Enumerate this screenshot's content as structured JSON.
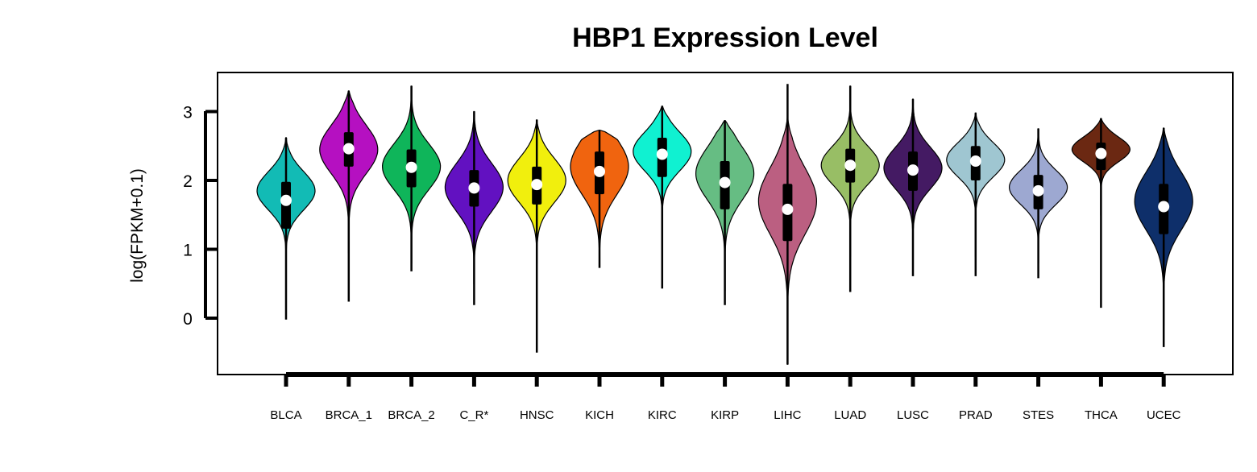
{
  "chart_data": {
    "type": "violin",
    "title": "HBP1 Expression Level",
    "xlabel": "",
    "ylabel": "log(FPKM+0.1)",
    "yticks": [
      0,
      1,
      2,
      3
    ],
    "ylim": [
      -0.8,
      3.58
    ],
    "categories": [
      "BLCA",
      "BRCA_1",
      "BRCA_2",
      "C_R*",
      "HNSC",
      "KICH",
      "KIRC",
      "KIRP",
      "LIHC",
      "LUAD",
      "LUSC",
      "PRAD",
      "STES",
      "THCA",
      "UCEC"
    ],
    "series": [
      {
        "category": "BLCA",
        "color": "#12BBB5",
        "min": -0.02,
        "q1": 1.3,
        "median": 1.71,
        "q3": 1.98,
        "max": 2.62,
        "violin_min": 0.3,
        "violin_max": 2.62,
        "peak": 1.85,
        "spread": 0.28
      },
      {
        "category": "BRCA_1",
        "color": "#B510C1",
        "min": 0.24,
        "q1": 2.2,
        "median": 2.46,
        "q3": 2.7,
        "max": 3.3,
        "violin_min": 0.95,
        "violin_max": 3.3,
        "peak": 2.45,
        "spread": 0.35
      },
      {
        "category": "BRCA_2",
        "color": "#0FB55A",
        "min": 0.68,
        "q1": 1.9,
        "median": 2.19,
        "q3": 2.45,
        "max": 3.37,
        "violin_min": 0.8,
        "violin_max": 3.37,
        "peak": 2.2,
        "spread": 0.33
      },
      {
        "category": "C_R*",
        "color": "#6211C1",
        "min": 0.19,
        "q1": 1.62,
        "median": 1.89,
        "q3": 2.15,
        "max": 3.0,
        "violin_min": 0.5,
        "violin_max": 3.0,
        "peak": 1.9,
        "spread": 0.35
      },
      {
        "category": "HNSC",
        "color": "#F1EF0D",
        "min": -0.5,
        "q1": 1.65,
        "median": 1.94,
        "q3": 2.2,
        "max": 2.88,
        "violin_min": 0.8,
        "violin_max": 2.88,
        "peak": 2.0,
        "spread": 0.32
      },
      {
        "category": "KICH",
        "color": "#F0640F",
        "min": 0.73,
        "q1": 1.8,
        "median": 2.13,
        "q3": 2.42,
        "max": 2.73,
        "violin_min": 0.85,
        "violin_max": 2.73,
        "peak": 2.2,
        "spread": 0.4
      },
      {
        "category": "KIRC",
        "color": "#10F1D1",
        "min": 0.43,
        "q1": 2.05,
        "median": 2.38,
        "q3": 2.62,
        "max": 3.08,
        "violin_min": 1.0,
        "violin_max": 3.08,
        "peak": 2.42,
        "spread": 0.28
      },
      {
        "category": "KIRP",
        "color": "#66BD83",
        "min": 0.19,
        "q1": 1.58,
        "median": 1.97,
        "q3": 2.28,
        "max": 2.87,
        "violin_min": 0.4,
        "violin_max": 2.87,
        "peak": 2.1,
        "spread": 0.38
      },
      {
        "category": "LIHC",
        "color": "#BB5F81",
        "min": -0.67,
        "q1": 1.12,
        "median": 1.58,
        "q3": 1.95,
        "max": 3.4,
        "violin_min": -0.67,
        "violin_max": 2.9,
        "peak": 1.7,
        "spread": 0.48
      },
      {
        "category": "LUAD",
        "color": "#98BE65",
        "min": 0.38,
        "q1": 1.97,
        "median": 2.22,
        "q3": 2.46,
        "max": 3.37,
        "violin_min": 0.9,
        "violin_max": 3.37,
        "peak": 2.22,
        "spread": 0.28
      },
      {
        "category": "LUSC",
        "color": "#441A63",
        "min": 0.61,
        "q1": 1.85,
        "median": 2.15,
        "q3": 2.42,
        "max": 3.18,
        "violin_min": 1.05,
        "violin_max": 3.18,
        "peak": 2.18,
        "spread": 0.3
      },
      {
        "category": "PRAD",
        "color": "#9FC6D1",
        "min": 0.61,
        "q1": 2.0,
        "median": 2.28,
        "q3": 2.5,
        "max": 2.98,
        "violin_min": 0.9,
        "violin_max": 2.98,
        "peak": 2.3,
        "spread": 0.25
      },
      {
        "category": "STES",
        "color": "#9DA8D1",
        "min": 0.58,
        "q1": 1.58,
        "median": 1.85,
        "q3": 2.08,
        "max": 2.75,
        "violin_min": 0.8,
        "violin_max": 2.75,
        "peak": 1.9,
        "spread": 0.25
      },
      {
        "category": "THCA",
        "color": "#6B2812",
        "min": 0.15,
        "q1": 2.15,
        "median": 2.39,
        "q3": 2.55,
        "max": 2.9,
        "violin_min": 1.5,
        "violin_max": 2.9,
        "peak": 2.45,
        "spread": 0.18
      },
      {
        "category": "UCEC",
        "color": "#0E2F6A",
        "min": -0.42,
        "q1": 1.22,
        "median": 1.62,
        "q3": 1.95,
        "max": 2.76,
        "violin_min": -0.1,
        "violin_max": 2.76,
        "peak": 1.7,
        "spread": 0.42
      }
    ],
    "grid": false,
    "legend": "none"
  }
}
